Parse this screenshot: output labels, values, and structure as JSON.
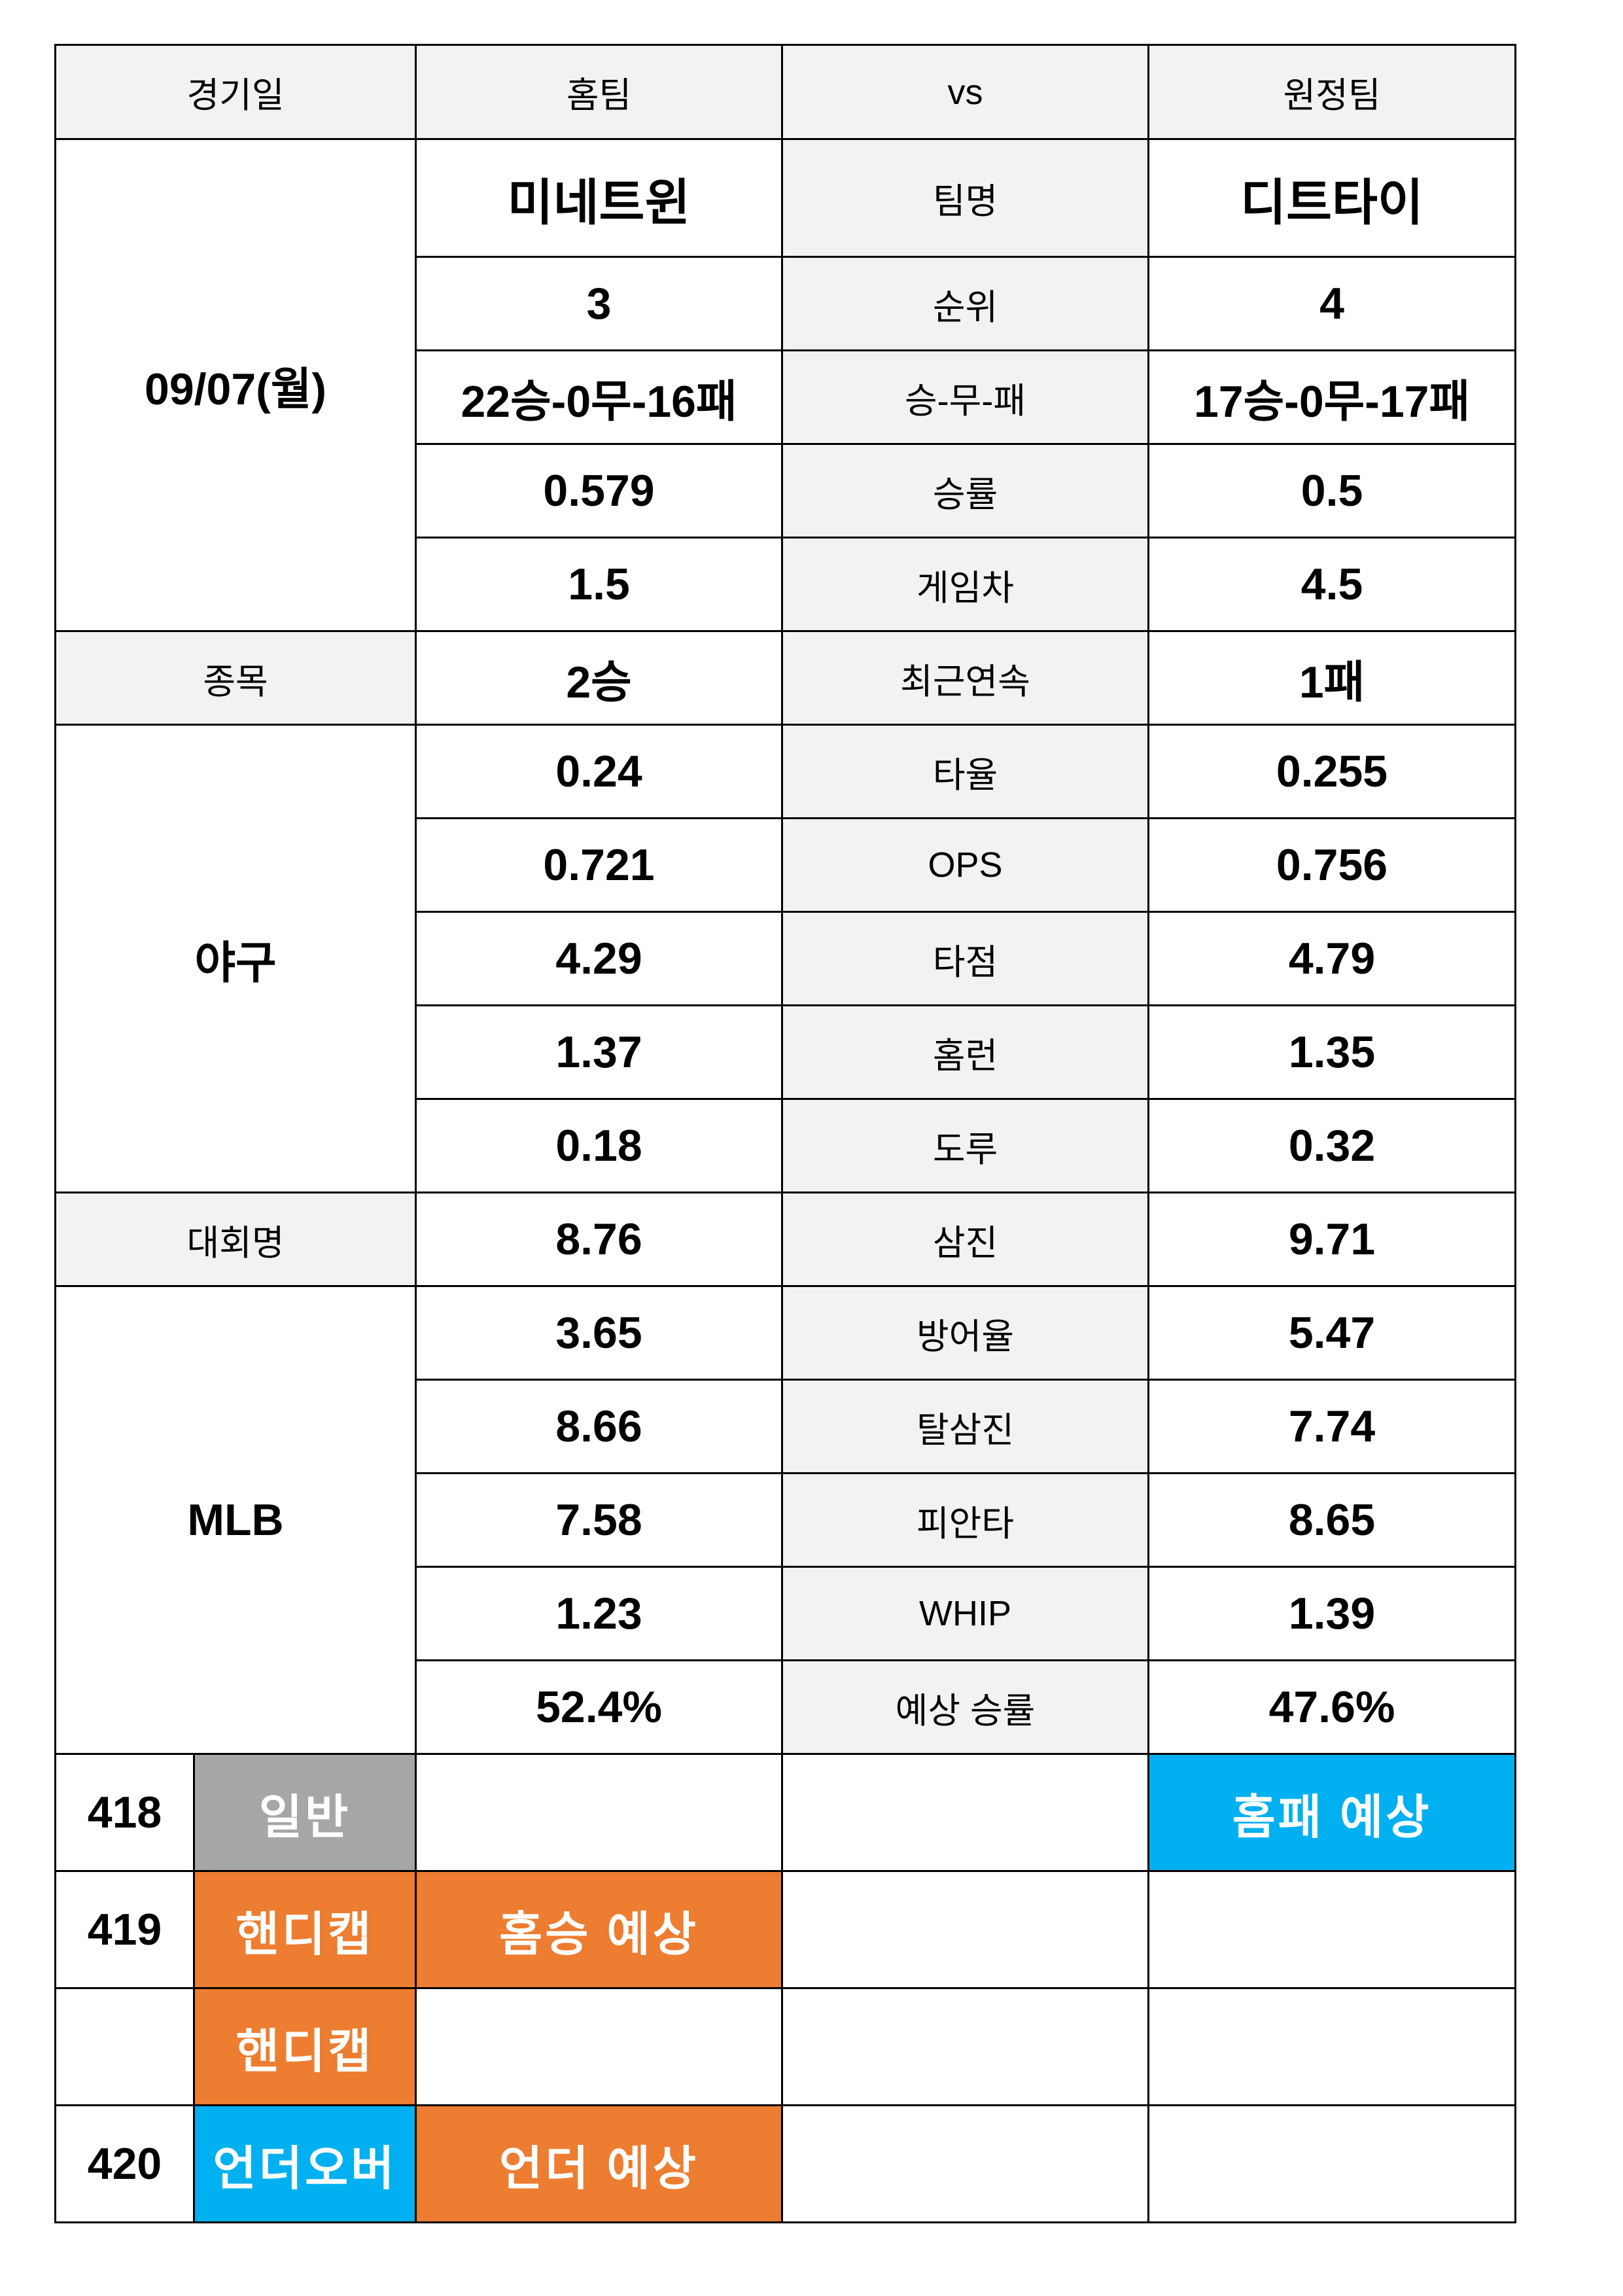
{
  "header": [
    "경기일",
    "홈팀",
    "vs",
    "원정팀"
  ],
  "match": {
    "date": "09/07(월)",
    "sport_label": "종목",
    "sport": "야구",
    "league_label": "대회명",
    "league": "MLB"
  },
  "stats": [
    {
      "label": "팀명",
      "home": "미네트윈",
      "away": "디트타이"
    },
    {
      "label": "순위",
      "home": "3",
      "away": "4"
    },
    {
      "label": "승-무-패",
      "home": "22승-0무-16패",
      "away": "17승-0무-17패"
    },
    {
      "label": "승률",
      "home": "0.579",
      "away": "0.5"
    },
    {
      "label": "게임차",
      "home": "1.5",
      "away": "4.5"
    },
    {
      "label": "최근연속",
      "home": "2승",
      "away": "1패"
    },
    {
      "label": "타율",
      "home": "0.24",
      "away": "0.255"
    },
    {
      "label": "OPS",
      "home": "0.721",
      "away": "0.756"
    },
    {
      "label": "타점",
      "home": "4.29",
      "away": "4.79"
    },
    {
      "label": "홈런",
      "home": "1.37",
      "away": "1.35"
    },
    {
      "label": "도루",
      "home": "0.18",
      "away": "0.32"
    },
    {
      "label": "삼진",
      "home": "8.76",
      "away": "9.71"
    },
    {
      "label": "방어율",
      "home": "3.65",
      "away": "5.47"
    },
    {
      "label": "탈삼진",
      "home": "8.66",
      "away": "7.74"
    },
    {
      "label": "피안타",
      "home": "7.58",
      "away": "8.65"
    },
    {
      "label": "WHIP",
      "home": "1.23",
      "away": "1.39"
    },
    {
      "label": "예상 승률",
      "home": "52.4%",
      "away": "47.6%"
    }
  ],
  "picks": [
    {
      "no": "418",
      "type": "일반",
      "type_color": "#a6a6a6",
      "away": "홈패 예상",
      "away_color": "#00b0f0"
    },
    {
      "no": "419",
      "type": "핸디캡",
      "type_color": "#ed7d31",
      "home": "홈승 예상",
      "home_color": "#ed7d31"
    },
    {
      "type": "핸디캡",
      "type_color": "#ed7d31"
    },
    {
      "no": "420",
      "type": "언더오버",
      "type_color": "#00b0f0",
      "home": "언더 예상",
      "home_color": "#ed7d31"
    }
  ]
}
